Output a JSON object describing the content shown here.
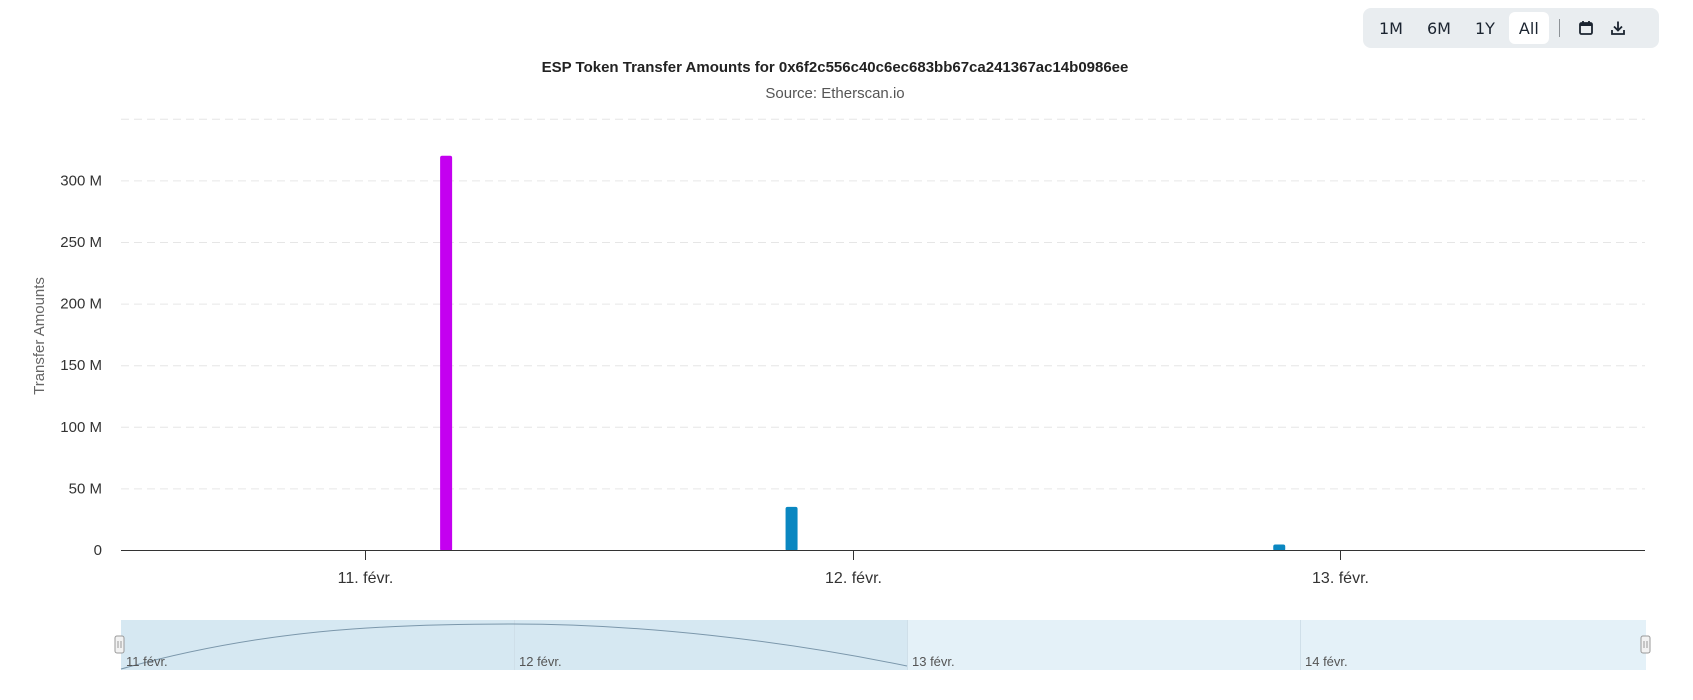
{
  "toolbar": {
    "ranges": [
      "1M",
      "6M",
      "1Y",
      "All"
    ],
    "active_range": "All",
    "icons": [
      "calendar-icon",
      "download-icon"
    ]
  },
  "chart_data": {
    "type": "bar",
    "title": "ESP Token Transfer Amounts for 0x6f2c556c40c6ec683bb67ca241367ac14b0986ee",
    "subtitle": "Source: Etherscan.io",
    "ylabel": "Transfer Amounts",
    "xlabel": "",
    "ylim": [
      0,
      350
    ],
    "yticks": [
      "0",
      "50 M",
      "100 M",
      "150 M",
      "200 M",
      "250 M",
      "300 M"
    ],
    "ytick_values": [
      0,
      50,
      100,
      150,
      200,
      250,
      300
    ],
    "unit": "M",
    "xticks": [
      "11. févr.",
      "12. févr.",
      "13. févr."
    ],
    "x_domain": [
      "2025-02-10 12:00",
      "2025-02-13 15:00"
    ],
    "bars": [
      {
        "x": "2025-02-11 04:00",
        "value": 320,
        "color": "#c400f0"
      },
      {
        "x": "2025-02-11 21:00",
        "value": 35,
        "color": "#0a87c1"
      },
      {
        "x": "2025-02-12 21:00",
        "value": 4.5,
        "color": "#0a87c1"
      }
    ],
    "grid": true,
    "navigator": {
      "labels": [
        "11 févr.",
        "12 févr.",
        "13 févr.",
        "14 févr."
      ]
    }
  }
}
